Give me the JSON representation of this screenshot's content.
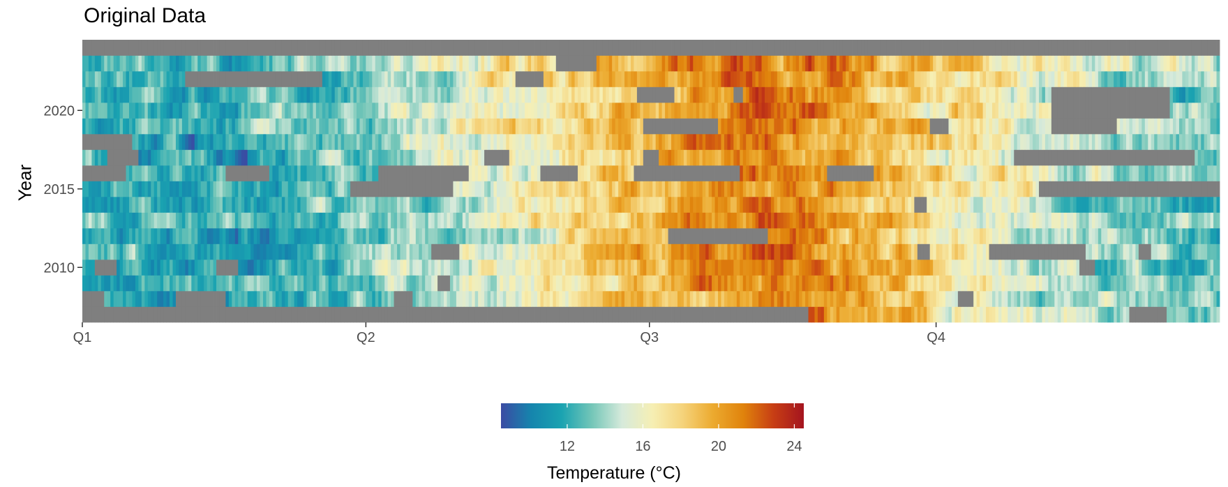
{
  "chart_data": {
    "type": "heatmap",
    "title": "Original Data",
    "xlabel": "",
    "ylabel": "Year",
    "x_ticks": [
      "Q1",
      "Q2",
      "Q3",
      "Q4"
    ],
    "y_ticks": [
      2010,
      2015,
      2020
    ],
    "years": [
      2007,
      2008,
      2009,
      2010,
      2011,
      2012,
      2013,
      2014,
      2015,
      2016,
      2017,
      2018,
      2019,
      2020,
      2021,
      2022,
      2023,
      2024
    ],
    "x_unit": "day of year",
    "x_range": [
      1,
      366
    ],
    "missing_color": "#7f7f7f",
    "legend": {
      "title": "Temperature (°C)",
      "ticks": [
        12,
        16,
        20,
        24
      ],
      "range": [
        8.5,
        24.5
      ],
      "placement": "bottom",
      "colors": [
        "#3b4ba3",
        "#1585ad",
        "#1aa3b1",
        "#74c6b8",
        "#d6eadb",
        "#f6efb4",
        "#f5d37b",
        "#ecaa2f",
        "#e0830c",
        "#c73e14",
        "#a4141f"
      ]
    },
    "seasonal_profile_c": [
      [
        1,
        12.5
      ],
      [
        40,
        11.5
      ],
      [
        90,
        13.0
      ],
      [
        140,
        16.2
      ],
      [
        190,
        19.8
      ],
      [
        220,
        21.0
      ],
      [
        250,
        19.8
      ],
      [
        285,
        16.8
      ],
      [
        320,
        14.5
      ],
      [
        366,
        12.8
      ]
    ],
    "year_offsets_c": {
      "2007": 0.6,
      "2008": -0.3,
      "2009": 0.0,
      "2010": -0.2,
      "2011": 0.3,
      "2012": -0.6,
      "2013": 0.5,
      "2014": -0.4,
      "2015": 0.2,
      "2016": 0.0,
      "2017": -0.2,
      "2018": 0.4,
      "2019": 0.3,
      "2020": 0.5,
      "2021": -0.1,
      "2022": 0.6,
      "2023": 0.8,
      "2024": 0.0
    },
    "missing_intervals": {
      "2007": [
        [
          1,
          234
        ],
        [
          337,
          349
        ]
      ],
      "2008": [
        [
          1,
          8
        ],
        [
          31,
          47
        ],
        [
          101,
          107
        ],
        [
          282,
          287
        ]
      ],
      "2009": [
        [
          115,
          119
        ]
      ],
      "2010": [
        [
          5,
          12
        ],
        [
          44,
          51
        ],
        [
          321,
          326
        ]
      ],
      "2011": [
        [
          113,
          122
        ],
        [
          269,
          273
        ],
        [
          292,
          323
        ],
        [
          340,
          344
        ]
      ],
      "2012": [
        [
          189,
          221
        ]
      ],
      "2013": [],
      "2014": [
        [
          268,
          272
        ]
      ],
      "2015": [
        [
          87,
          120
        ],
        [
          308,
          366
        ]
      ],
      "2016": [
        [
          1,
          15
        ],
        [
          47,
          61
        ],
        [
          96,
          125
        ],
        [
          148,
          160
        ],
        [
          178,
          212
        ],
        [
          240,
          255
        ]
      ],
      "2017": [
        [
          9,
          19
        ],
        [
          130,
          138
        ],
        [
          181,
          186
        ],
        [
          300,
          358
        ],
        [
          347,
          358
        ]
      ],
      "2018": [
        [
          1,
          17
        ]
      ],
      "2019": [
        [
          181,
          205
        ],
        [
          273,
          279
        ],
        [
          312,
          333
        ]
      ],
      "2020": [
        [
          312,
          350
        ]
      ],
      "2021": [
        [
          179,
          191
        ],
        [
          210,
          213
        ],
        [
          312,
          350
        ]
      ],
      "2022": [
        [
          34,
          78
        ],
        [
          140,
          149
        ]
      ],
      "2023": [
        [
          153,
          166
        ]
      ],
      "2024": [
        [
          1,
          366
        ]
      ]
    }
  }
}
